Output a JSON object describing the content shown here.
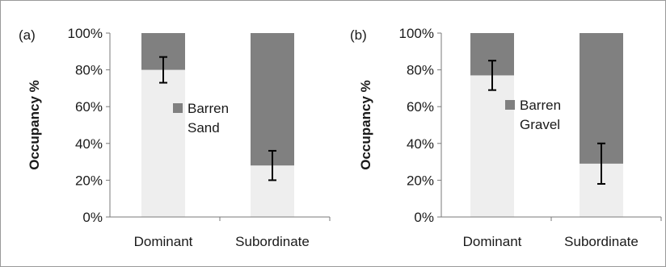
{
  "chart_data": [
    {
      "type": "bar",
      "stacked": true,
      "panel_label": "(a)",
      "ylabel": "Occupancy %",
      "xlabel": "",
      "ylim": [
        0,
        100
      ],
      "yticks": [
        "0%",
        "20%",
        "40%",
        "60%",
        "80%",
        "100%"
      ],
      "categories": [
        "Dominant",
        "Subordinate"
      ],
      "series": [
        {
          "name": "",
          "color": "#eeeeee",
          "values": [
            80,
            28
          ],
          "error": [
            [
              73,
              87
            ],
            [
              20,
              36
            ]
          ]
        },
        {
          "name": "Barren Sand",
          "color": "#808080",
          "values": [
            20,
            72
          ]
        }
      ],
      "legend": {
        "placement": "center",
        "lines": [
          "Barren",
          "Sand"
        ]
      },
      "grid": false
    },
    {
      "type": "bar",
      "stacked": true,
      "panel_label": "(b)",
      "ylabel": "Occupancy %",
      "xlabel": "",
      "ylim": [
        0,
        100
      ],
      "yticks": [
        "0%",
        "20%",
        "40%",
        "60%",
        "80%",
        "100%"
      ],
      "categories": [
        "Dominant",
        "Subordinate"
      ],
      "series": [
        {
          "name": "",
          "color": "#eeeeee",
          "values": [
            77,
            29
          ],
          "error": [
            [
              69,
              85
            ],
            [
              18,
              40
            ]
          ]
        },
        {
          "name": "Barren Gravel",
          "color": "#808080",
          "values": [
            23,
            71
          ]
        }
      ],
      "legend": {
        "placement": "center",
        "lines": [
          "Barren",
          "Gravel"
        ]
      },
      "grid": false
    }
  ]
}
